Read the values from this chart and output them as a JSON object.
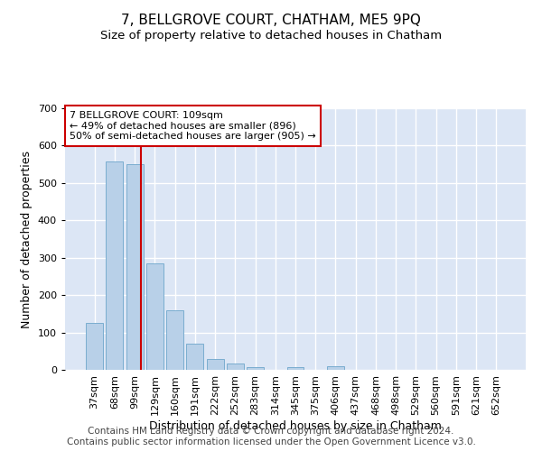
{
  "title": "7, BELLGROVE COURT, CHATHAM, ME5 9PQ",
  "subtitle": "Size of property relative to detached houses in Chatham",
  "xlabel": "Distribution of detached houses by size in Chatham",
  "ylabel": "Number of detached properties",
  "footer_line1": "Contains HM Land Registry data © Crown copyright and database right 2024.",
  "footer_line2": "Contains public sector information licensed under the Open Government Licence v3.0.",
  "categories": [
    "37sqm",
    "68sqm",
    "99sqm",
    "129sqm",
    "160sqm",
    "191sqm",
    "222sqm",
    "252sqm",
    "283sqm",
    "314sqm",
    "345sqm",
    "375sqm",
    "406sqm",
    "437sqm",
    "468sqm",
    "498sqm",
    "529sqm",
    "560sqm",
    "591sqm",
    "621sqm",
    "652sqm"
  ],
  "values": [
    125,
    558,
    550,
    285,
    160,
    70,
    30,
    17,
    8,
    0,
    8,
    0,
    10,
    0,
    0,
    0,
    0,
    0,
    0,
    0,
    0
  ],
  "bar_color": "#b8d0e8",
  "bar_edge_color": "#7aadd0",
  "vline_x": 2.3,
  "vline_color": "#cc0000",
  "annotation_text": "7 BELLGROVE COURT: 109sqm\n← 49% of detached houses are smaller (896)\n50% of semi-detached houses are larger (905) →",
  "annotation_box_color": "white",
  "annotation_box_edge_color": "#cc0000",
  "ylim": [
    0,
    700
  ],
  "yticks": [
    0,
    100,
    200,
    300,
    400,
    500,
    600,
    700
  ],
  "background_color": "#dce6f5",
  "grid_color": "white",
  "title_fontsize": 11,
  "subtitle_fontsize": 9.5,
  "axis_label_fontsize": 9,
  "tick_fontsize": 8,
  "footer_fontsize": 7.5,
  "annotation_fontsize": 8
}
